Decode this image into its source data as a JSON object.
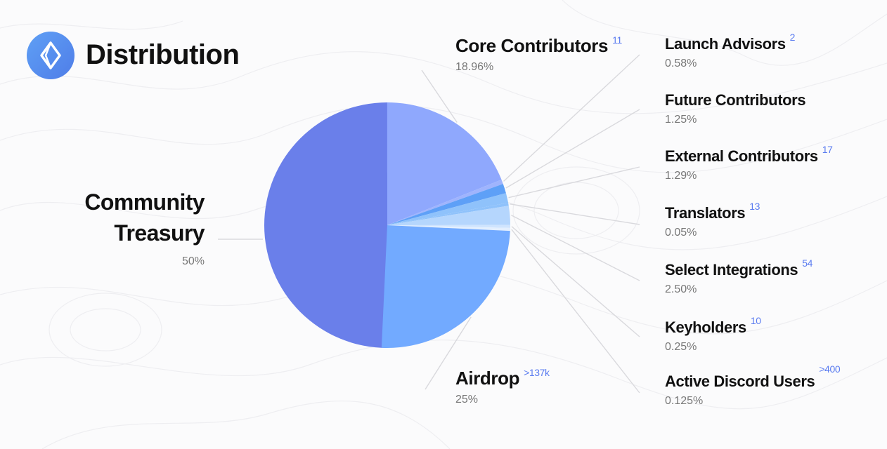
{
  "header": {
    "title": "Distribution",
    "logo_icon": "ens-logo-icon"
  },
  "colors": {
    "treasury": "#6a7fea",
    "airdrop": "#72aaff",
    "core": "#8fa8fd",
    "small1": "#5ea0f7",
    "small2": "#8fc2fb",
    "small3": "#b5d6fd",
    "leader": "#d9d9dd"
  },
  "labels": {
    "core": {
      "name": "Core Contributors",
      "count": "11",
      "pct": "18.96%"
    },
    "treasury": {
      "name_line1": "Community",
      "name_line2": "Treasury",
      "pct": "50%"
    },
    "airdrop": {
      "name": "Airdrop",
      "count": ">137k",
      "pct": "25%"
    },
    "launch": {
      "name": "Launch Advisors",
      "count": "2",
      "pct": "0.58%"
    },
    "future": {
      "name": "Future Contributors",
      "pct": "1.25%"
    },
    "external": {
      "name": "External Contributors",
      "count": "17",
      "pct": "1.29%"
    },
    "translators": {
      "name": "Translators",
      "count": "13",
      "pct": "0.05%"
    },
    "select": {
      "name": "Select Integrations",
      "count": "54",
      "pct": "2.50%"
    },
    "keyholders": {
      "name": "Keyholders",
      "count": "10",
      "pct": "0.25%"
    },
    "discord": {
      "name": "Active Discord Users",
      "count": ">400",
      "pct": "0.125%"
    }
  },
  "chart_data": {
    "type": "pie",
    "title": "Distribution",
    "slices": [
      {
        "label": "Community Treasury",
        "value": 50,
        "count": "",
        "color": "#6a7fea"
      },
      {
        "label": "Airdrop",
        "value": 25,
        "count": ">137k",
        "color": "#72aaff"
      },
      {
        "label": "Core Contributors",
        "value": 18.96,
        "count": "11",
        "color": "#8fa8fd"
      },
      {
        "label": "Launch Advisors",
        "value": 0.58,
        "count": "2",
        "color": "#9fb4fd"
      },
      {
        "label": "Future Contributors",
        "value": 1.25,
        "count": "",
        "color": "#5ea0f7"
      },
      {
        "label": "External Contributors",
        "value": 1.29,
        "count": "17",
        "color": "#8fc2fb"
      },
      {
        "label": "Translators",
        "value": 0.05,
        "count": "13",
        "color": "#8fc2fb"
      },
      {
        "label": "Select Integrations",
        "value": 2.5,
        "count": "54",
        "color": "#b5d6fd"
      },
      {
        "label": "Keyholders",
        "value": 0.25,
        "count": "10",
        "color": "#cfe4fe"
      },
      {
        "label": "Active Discord Users",
        "value": 0.125,
        "count": ">400",
        "color": "#e3effe"
      }
    ]
  }
}
